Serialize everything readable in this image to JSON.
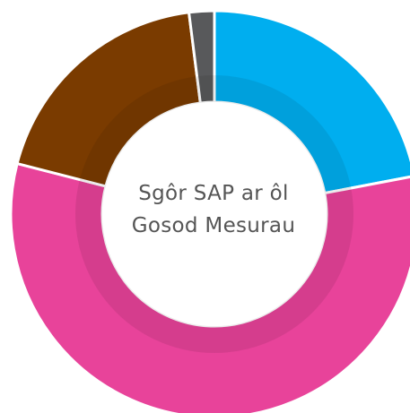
{
  "chart_data": {
    "type": "donut",
    "title": "Sgôr SAP ar ôl Gosod Mesurau",
    "categories": [
      null,
      null,
      null,
      null
    ],
    "values": [
      22,
      57,
      19,
      2
    ],
    "colors": [
      "#00aeef",
      "#e8439a",
      "#7a3b00",
      "#58595b"
    ]
  }
}
